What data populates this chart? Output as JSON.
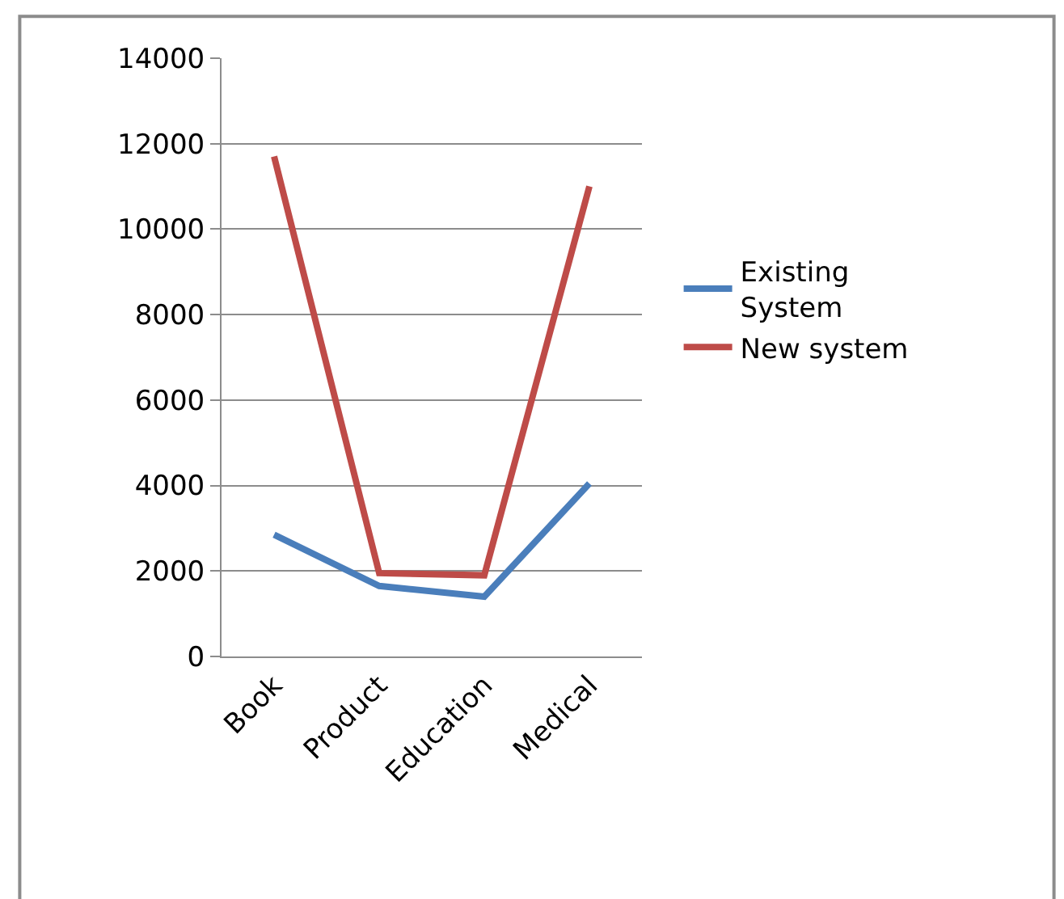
{
  "chart_data": {
    "type": "line",
    "categories": [
      "Book",
      "Product",
      "Education",
      "Medical"
    ],
    "series": [
      {
        "name": "Existing\nSystem",
        "color": "#4a7ebb",
        "values": [
          2850,
          1650,
          1400,
          4050
        ]
      },
      {
        "name": "New system",
        "color": "#be4b48",
        "values": [
          11700,
          1950,
          1900,
          11000
        ]
      }
    ],
    "ylim": [
      0,
      14000
    ],
    "yticks": [
      0,
      2000,
      4000,
      6000,
      8000,
      10000,
      12000,
      14000
    ],
    "grid": "y",
    "legend": "right",
    "marker": "none",
    "line_style": "solid"
  }
}
